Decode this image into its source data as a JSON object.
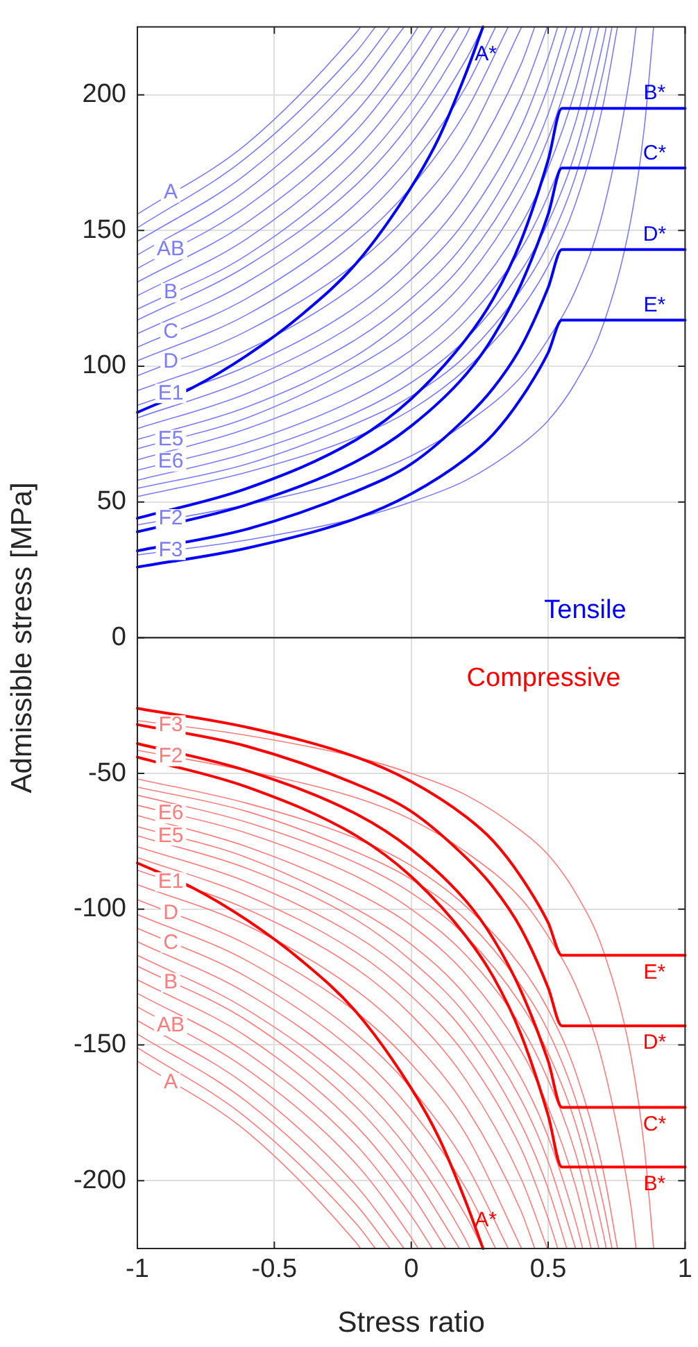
{
  "chart_data": {
    "type": "line",
    "xlabel": "Stress ratio",
    "ylabel": "Admissible stress [MPa]",
    "xlim": [
      -1,
      1
    ],
    "xticks": [
      -1,
      -0.5,
      0,
      0.5,
      1
    ],
    "ylim": [
      -225,
      225
    ],
    "yticks": [
      -200,
      -150,
      -100,
      -50,
      0,
      50,
      100,
      150,
      200
    ],
    "grid": true,
    "legend": false,
    "marker": "none",
    "line_style": "solid",
    "annotations": [
      "Tensile",
      "Compressive"
    ],
    "ref_lines": [
      {
        "axis": "y",
        "value": 0,
        "color": "#262626"
      }
    ],
    "series": [
      {
        "name": "A*",
        "color": "#0000ff",
        "x": [
          -1,
          -0.8,
          -0.6,
          -0.4,
          -0.2,
          0,
          0.1,
          0.2,
          0.262
        ],
        "values": [
          83,
          92,
          104,
          119,
          138,
          166,
          184,
          208,
          225
        ]
      },
      {
        "name": "B*",
        "color": "#0000ff",
        "x": [
          -1,
          -0.6,
          -0.2,
          0,
          0.2,
          0.3,
          0.4,
          0.5,
          0.55,
          1
        ],
        "values": [
          44,
          55,
          73,
          88,
          110,
          125,
          146,
          176,
          195,
          195
        ]
      },
      {
        "name": "C*",
        "color": "#0000ff",
        "x": [
          -1,
          -0.6,
          -0.2,
          0,
          0.2,
          0.3,
          0.4,
          0.5,
          0.55,
          1
        ],
        "values": [
          39,
          49,
          65,
          78,
          97,
          111,
          130,
          156,
          173,
          173
        ]
      },
      {
        "name": "D*",
        "color": "#0000ff",
        "x": [
          -1,
          -0.6,
          -0.2,
          0,
          0.2,
          0.3,
          0.4,
          0.5,
          0.55,
          1
        ],
        "values": [
          32,
          40,
          54,
          64,
          81,
          92,
          107,
          129,
          143,
          143
        ]
      },
      {
        "name": "E*",
        "color": "#0000ff",
        "x": [
          -1,
          -0.6,
          -0.2,
          0,
          0.2,
          0.3,
          0.4,
          0.5,
          0.55,
          1
        ],
        "values": [
          26,
          33,
          44,
          53,
          66,
          75,
          88,
          105,
          117,
          117
        ]
      },
      {
        "name": "A",
        "color": "#7b7bff",
        "x": [
          -1,
          -0.6,
          -0.2,
          -0.185
        ],
        "values": [
          156,
          182,
          223,
          225
        ]
      },
      {
        "color": "#7b7bff",
        "x": [
          -1,
          -0.6,
          -0.2,
          -0.131
        ],
        "values": [
          151,
          177,
          216,
          225
        ]
      },
      {
        "color": "#7b7bff",
        "x": [
          -1,
          -0.6,
          -0.2,
          -0.078
        ],
        "values": [
          146,
          171,
          209,
          225
        ]
      },
      {
        "color": "#7b7bff",
        "x": [
          -1,
          -0.6,
          -0.2,
          -0.026
        ],
        "values": [
          141,
          165,
          202,
          225
        ]
      },
      {
        "name": "AB",
        "color": "#7b7bff",
        "x": [
          -1,
          -0.6,
          -0.2,
          0,
          0.025
        ],
        "values": [
          136,
          159,
          194,
          221,
          225
        ]
      },
      {
        "color": "#7b7bff",
        "x": [
          -1,
          -0.6,
          -0.2,
          0,
          0.077
        ],
        "values": [
          131,
          153,
          187,
          213,
          225
        ]
      },
      {
        "color": "#7b7bff",
        "x": [
          -1,
          -0.6,
          -0.2,
          0,
          0.126
        ],
        "values": [
          126,
          147,
          180,
          205,
          225
        ]
      },
      {
        "name": "B",
        "color": "#7b7bff",
        "x": [
          -1,
          -0.6,
          -0.2,
          0,
          0.176
        ],
        "values": [
          121,
          141,
          173,
          197,
          225
        ]
      },
      {
        "color": "#7b7bff",
        "x": [
          -1,
          -0.6,
          -0.2,
          0,
          0.2,
          0.214
        ],
        "values": [
          117,
          137,
          167,
          190,
          222,
          225
        ]
      },
      {
        "color": "#7b7bff",
        "x": [
          -1,
          -0.6,
          -0.2,
          0,
          0.2,
          0.262
        ],
        "values": [
          112,
          131,
          160,
          182,
          213,
          225
        ]
      },
      {
        "name": "C",
        "color": "#7b7bff",
        "x": [
          -1,
          -0.6,
          -0.2,
          0,
          0.2,
          0.308
        ],
        "values": [
          107,
          125,
          153,
          174,
          203,
          225
        ]
      },
      {
        "color": "#7b7bff",
        "x": [
          -1,
          -0.6,
          -0.2,
          0,
          0.2,
          0.354
        ],
        "values": [
          102,
          119,
          146,
          166,
          194,
          225
        ]
      },
      {
        "name": "D",
        "color": "#7b7bff",
        "x": [
          -1,
          -0.6,
          -0.2,
          0,
          0.2,
          0.403
        ],
        "values": [
          96.5,
          113,
          138,
          157,
          183,
          225
        ]
      },
      {
        "color": "#7b7bff",
        "x": [
          -1,
          -0.6,
          -0.2,
          0,
          0.2,
          0.4,
          0.451
        ],
        "values": [
          91,
          106,
          130,
          148,
          173,
          211,
          225
        ]
      },
      {
        "name": "E1",
        "color": "#7b7bff",
        "x": [
          -1,
          -0.6,
          -0.2,
          0,
          0.2,
          0.4,
          0.497
        ],
        "values": [
          85.6,
          100,
          122,
          139,
          163,
          199,
          225
        ]
      },
      {
        "color": "#7b7bff",
        "x": [
          -1,
          -0.6,
          -0.2,
          0,
          0.2,
          0.4,
          0.5,
          0.535
        ],
        "values": [
          81,
          95,
          116,
          132,
          154,
          188,
          214,
          225
        ]
      },
      {
        "color": "#7b7bff",
        "x": [
          -1,
          -0.6,
          -0.2,
          0,
          0.2,
          0.4,
          0.5,
          0.568
        ],
        "values": [
          77,
          90,
          110,
          125,
          146,
          179,
          203,
          225
        ]
      },
      {
        "color": "#7b7bff",
        "x": [
          -1,
          -0.6,
          -0.2,
          0,
          0.2,
          0.4,
          0.5,
          0.6
        ],
        "values": [
          73,
          85,
          104,
          119,
          139,
          170,
          193,
          225
        ]
      },
      {
        "name": "E5",
        "color": "#7b7bff",
        "x": [
          -1,
          -0.6,
          -0.2,
          0,
          0.2,
          0.4,
          0.5,
          0.6,
          0.626
        ],
        "values": [
          69.6,
          81,
          100,
          113,
          132,
          162,
          184,
          215,
          225
        ]
      },
      {
        "color": "#7b7bff",
        "x": [
          -1,
          -0.6,
          -0.2,
          0,
          0.2,
          0.4,
          0.5,
          0.6,
          0.657
        ],
        "values": [
          65.5,
          77,
          94,
          106,
          124,
          152,
          173,
          202,
          225
        ]
      },
      {
        "name": "E6",
        "color": "#7b7bff",
        "x": [
          -1,
          -0.6,
          -0.2,
          0,
          0.2,
          0.4,
          0.5,
          0.6,
          0.685
        ],
        "values": [
          61.7,
          72,
          88,
          100,
          117,
          143,
          163,
          190,
          225
        ]
      },
      {
        "color": "#7b7bff",
        "x": [
          -1,
          -0.6,
          -0.2,
          0,
          0.2,
          0.4,
          0.5,
          0.6,
          0.7,
          0.712
        ],
        "values": [
          58,
          68,
          83,
          94,
          110,
          135,
          153,
          179,
          219,
          225
        ]
      },
      {
        "color": "#7b7bff",
        "x": [
          -1,
          -0.6,
          -0.2,
          0,
          0.2,
          0.4,
          0.5,
          0.6,
          0.7,
          0.733
        ],
        "values": [
          55,
          64,
          79,
          89,
          104,
          128,
          145,
          170,
          208,
          225
        ]
      },
      {
        "color": "#7b7bff",
        "x": [
          -1,
          -0.6,
          -0.2,
          0,
          0.2,
          0.4,
          0.5,
          0.6,
          0.7,
          0.753
        ],
        "values": [
          52,
          61,
          74,
          84,
          99,
          121,
          137,
          160,
          196,
          225
        ]
      },
      {
        "name": "F2",
        "color": "#7b7bff",
        "x": [
          -1,
          -0.6,
          -0.2,
          0,
          0.2,
          0.4,
          0.5,
          0.6,
          0.7,
          0.8,
          0.821
        ],
        "values": [
          41.5,
          49,
          59,
          67,
          79,
          96,
          110,
          128,
          157,
          208,
          225
        ]
      },
      {
        "name": "F3",
        "color": "#7b7bff",
        "x": [
          -1,
          -0.6,
          -0.2,
          0,
          0.2,
          0.4,
          0.5,
          0.6,
          0.7,
          0.8,
          0.85,
          0.885
        ],
        "values": [
          30.5,
          36,
          44,
          50,
          58,
          71,
          80,
          94,
          115,
          153,
          187,
          225
        ]
      },
      {
        "name": "A*",
        "color": "#ff0000",
        "x": [
          -1,
          -0.8,
          -0.6,
          -0.4,
          -0.2,
          0,
          0.1,
          0.2,
          0.262
        ],
        "values": [
          -83,
          -92,
          -104,
          -119,
          -138,
          -166,
          -184,
          -208,
          -225
        ]
      },
      {
        "name": "B*",
        "color": "#ff0000",
        "x": [
          -1,
          -0.6,
          -0.2,
          0,
          0.2,
          0.3,
          0.4,
          0.5,
          0.55,
          1
        ],
        "values": [
          -44,
          -55,
          -73,
          -88,
          -110,
          -125,
          -146,
          -176,
          -195,
          -195
        ]
      },
      {
        "name": "C*",
        "color": "#ff0000",
        "x": [
          -1,
          -0.6,
          -0.2,
          0,
          0.2,
          0.3,
          0.4,
          0.5,
          0.55,
          1
        ],
        "values": [
          -39,
          -49,
          -65,
          -78,
          -97,
          -111,
          -130,
          -156,
          -173,
          -173
        ]
      },
      {
        "name": "D*",
        "color": "#ff0000",
        "x": [
          -1,
          -0.6,
          -0.2,
          0,
          0.2,
          0.3,
          0.4,
          0.5,
          0.55,
          1
        ],
        "values": [
          -32,
          -40,
          -54,
          -64,
          -81,
          -92,
          -107,
          -129,
          -143,
          -143
        ]
      },
      {
        "name": "E*",
        "color": "#ff0000",
        "x": [
          -1,
          -0.6,
          -0.2,
          0,
          0.2,
          0.3,
          0.4,
          0.5,
          0.55,
          1
        ],
        "values": [
          -26,
          -33,
          -44,
          -53,
          -66,
          -75,
          -88,
          -105,
          -117,
          -117
        ]
      },
      {
        "name": "A",
        "color": "#ff7b7b",
        "x": [
          -1,
          -0.6,
          -0.2,
          -0.185
        ],
        "values": [
          -156,
          -182,
          -223,
          -225
        ]
      },
      {
        "color": "#ff7b7b",
        "x": [
          -1,
          -0.6,
          -0.2,
          -0.131
        ],
        "values": [
          -151,
          -177,
          -216,
          -225
        ]
      },
      {
        "color": "#ff7b7b",
        "x": [
          -1,
          -0.6,
          -0.2,
          -0.078
        ],
        "values": [
          -146,
          -171,
          -209,
          -225
        ]
      },
      {
        "color": "#ff7b7b",
        "x": [
          -1,
          -0.6,
          -0.2,
          -0.026
        ],
        "values": [
          -141,
          -165,
          -202,
          -225
        ]
      },
      {
        "name": "AB",
        "color": "#ff7b7b",
        "x": [
          -1,
          -0.6,
          -0.2,
          0,
          0.025
        ],
        "values": [
          -136,
          -159,
          -194,
          -221,
          -225
        ]
      },
      {
        "color": "#ff7b7b",
        "x": [
          -1,
          -0.6,
          -0.2,
          0,
          0.077
        ],
        "values": [
          -131,
          -153,
          -187,
          -213,
          -225
        ]
      },
      {
        "color": "#ff7b7b",
        "x": [
          -1,
          -0.6,
          -0.2,
          0,
          0.126
        ],
        "values": [
          -126,
          -147,
          -180,
          -205,
          -225
        ]
      },
      {
        "name": "B",
        "color": "#ff7b7b",
        "x": [
          -1,
          -0.6,
          -0.2,
          0,
          0.176
        ],
        "values": [
          -121,
          -141,
          -173,
          -197,
          -225
        ]
      },
      {
        "color": "#ff7b7b",
        "x": [
          -1,
          -0.6,
          -0.2,
          0,
          0.2,
          0.214
        ],
        "values": [
          -117,
          -137,
          -167,
          -190,
          -222,
          -225
        ]
      },
      {
        "color": "#ff7b7b",
        "x": [
          -1,
          -0.6,
          -0.2,
          0,
          0.2,
          0.262
        ],
        "values": [
          -112,
          -131,
          -160,
          -182,
          -213,
          -225
        ]
      },
      {
        "name": "C",
        "color": "#ff7b7b",
        "x": [
          -1,
          -0.6,
          -0.2,
          0,
          0.2,
          0.308
        ],
        "values": [
          -107,
          -125,
          -153,
          -174,
          -203,
          -225
        ]
      },
      {
        "color": "#ff7b7b",
        "x": [
          -1,
          -0.6,
          -0.2,
          0,
          0.2,
          0.354
        ],
        "values": [
          -102,
          -119,
          -146,
          -166,
          -194,
          -225
        ]
      },
      {
        "name": "D",
        "color": "#ff7b7b",
        "x": [
          -1,
          -0.6,
          -0.2,
          0,
          0.2,
          0.403
        ],
        "values": [
          -96.5,
          -113,
          -138,
          -157,
          -183,
          -225
        ]
      },
      {
        "color": "#ff7b7b",
        "x": [
          -1,
          -0.6,
          -0.2,
          0,
          0.2,
          0.4,
          0.451
        ],
        "values": [
          -91,
          -106,
          -130,
          -148,
          -173,
          -211,
          -225
        ]
      },
      {
        "name": "E1",
        "color": "#ff7b7b",
        "x": [
          -1,
          -0.6,
          -0.2,
          0,
          0.2,
          0.4,
          0.497
        ],
        "values": [
          -85.6,
          -100,
          -122,
          -139,
          -163,
          -199,
          -225
        ]
      },
      {
        "color": "#ff7b7b",
        "x": [
          -1,
          -0.6,
          -0.2,
          0,
          0.2,
          0.4,
          0.5,
          0.535
        ],
        "values": [
          -81,
          -95,
          -116,
          -132,
          -154,
          -188,
          -214,
          -225
        ]
      },
      {
        "color": "#ff7b7b",
        "x": [
          -1,
          -0.6,
          -0.2,
          0,
          0.2,
          0.4,
          0.5,
          0.568
        ],
        "values": [
          -77,
          -90,
          -110,
          -125,
          -146,
          -179,
          -203,
          -225
        ]
      },
      {
        "color": "#ff7b7b",
        "x": [
          -1,
          -0.6,
          -0.2,
          0,
          0.2,
          0.4,
          0.5,
          0.6
        ],
        "values": [
          -73,
          -85,
          -104,
          -119,
          -139,
          -170,
          -193,
          -225
        ]
      },
      {
        "name": "E5",
        "color": "#ff7b7b",
        "x": [
          -1,
          -0.6,
          -0.2,
          0,
          0.2,
          0.4,
          0.5,
          0.6,
          0.626
        ],
        "values": [
          -69.6,
          -81,
          -100,
          -113,
          -132,
          -162,
          -184,
          -215,
          -225
        ]
      },
      {
        "color": "#ff7b7b",
        "x": [
          -1,
          -0.6,
          -0.2,
          0,
          0.2,
          0.4,
          0.5,
          0.6,
          0.657
        ],
        "values": [
          -65.5,
          -77,
          -94,
          -106,
          -124,
          -152,
          -173,
          -202,
          -225
        ]
      },
      {
        "name": "E6",
        "color": "#ff7b7b",
        "x": [
          -1,
          -0.6,
          -0.2,
          0,
          0.2,
          0.4,
          0.5,
          0.6,
          0.685
        ],
        "values": [
          -61.7,
          -72,
          -88,
          -100,
          -117,
          -143,
          -163,
          -190,
          -225
        ]
      },
      {
        "color": "#ff7b7b",
        "x": [
          -1,
          -0.6,
          -0.2,
          0,
          0.2,
          0.4,
          0.5,
          0.6,
          0.7,
          0.712
        ],
        "values": [
          -58,
          -68,
          -83,
          -94,
          -110,
          -135,
          -153,
          -179,
          -219,
          -225
        ]
      },
      {
        "color": "#ff7b7b",
        "x": [
          -1,
          -0.6,
          -0.2,
          0,
          0.2,
          0.4,
          0.5,
          0.6,
          0.7,
          0.733
        ],
        "values": [
          -55,
          -64,
          -79,
          -89,
          -104,
          -128,
          -145,
          -170,
          -208,
          -225
        ]
      },
      {
        "color": "#ff7b7b",
        "x": [
          -1,
          -0.6,
          -0.2,
          0,
          0.2,
          0.4,
          0.5,
          0.6,
          0.7,
          0.753
        ],
        "values": [
          -52,
          -61,
          -74,
          -84,
          -99,
          -121,
          -137,
          -160,
          -196,
          -225
        ]
      },
      {
        "name": "F2",
        "color": "#ff7b7b",
        "x": [
          -1,
          -0.6,
          -0.2,
          0,
          0.2,
          0.4,
          0.5,
          0.6,
          0.7,
          0.8,
          0.821
        ],
        "values": [
          -41.5,
          -49,
          -59,
          -67,
          -79,
          -96,
          -110,
          -128,
          -157,
          -208,
          -225
        ]
      },
      {
        "name": "F3",
        "color": "#ff7b7b",
        "x": [
          -1,
          -0.6,
          -0.2,
          0,
          0.2,
          0.4,
          0.5,
          0.6,
          0.7,
          0.8,
          0.85,
          0.885
        ],
        "values": [
          -30.5,
          -36,
          -44,
          -50,
          -58,
          -71,
          -80,
          -94,
          -115,
          -153,
          -187,
          -225
        ]
      }
    ]
  }
}
